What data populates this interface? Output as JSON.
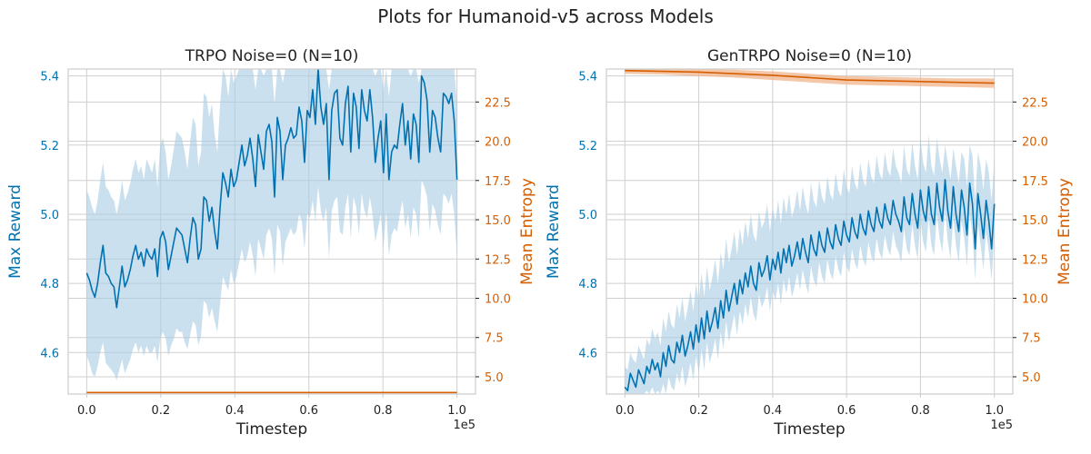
{
  "figure": {
    "title": "Plots for Humanoid-v5 across Models"
  },
  "colors": {
    "reward": "#0072b2",
    "reward_band": "#a9cce3",
    "entropy": "#d55e00",
    "entropy_band": "#f2b48c",
    "grid": "#cfcfcf",
    "text": "#222222"
  },
  "chart_data": [
    {
      "type": "line",
      "title": "TRPO Noise=0 (N=10)",
      "xlabel": "Timestep",
      "ylabel": "Max Reward",
      "y2label": "Mean Entropy",
      "x_scale_note": "1e5",
      "xlim": [
        -0.05,
        1.05
      ],
      "ylim": [
        4.48,
        5.42
      ],
      "y2lim": [
        3.9,
        24.6
      ],
      "xticks": [
        "0.0",
        "0.2",
        "0.4",
        "0.6",
        "0.8",
        "1.0"
      ],
      "yticks": [
        "4.6",
        "4.8",
        "5.0",
        "5.2",
        "5.4"
      ],
      "y2ticks": [
        "5.0",
        "7.5",
        "10.0",
        "12.5",
        "15.0",
        "17.5",
        "20.0",
        "22.5"
      ],
      "grid": true,
      "series": [
        {
          "axis": "left",
          "x_start": 0.0,
          "x_end": 1.0,
          "values": [
            4.83,
            4.81,
            4.78,
            4.76,
            4.8,
            4.86,
            4.91,
            4.83,
            4.82,
            4.8,
            4.79,
            4.73,
            4.79,
            4.85,
            4.79,
            4.81,
            4.84,
            4.88,
            4.91,
            4.87,
            4.89,
            4.85,
            4.9,
            4.88,
            4.87,
            4.9,
            4.82,
            4.93,
            4.95,
            4.92,
            4.84,
            4.88,
            4.92,
            4.96,
            4.95,
            4.94,
            4.9,
            4.86,
            4.93,
            4.99,
            4.97,
            4.87,
            4.9,
            5.05,
            5.04,
            4.98,
            5.02,
            4.95,
            4.9,
            5.02,
            5.12,
            5.09,
            5.05,
            5.13,
            5.08,
            5.1,
            5.15,
            5.2,
            5.14,
            5.17,
            5.22,
            5.16,
            5.08,
            5.23,
            5.18,
            5.13,
            5.24,
            5.26,
            5.21,
            5.05,
            5.28,
            5.24,
            5.1,
            5.2,
            5.22,
            5.25,
            5.22,
            5.23,
            5.31,
            5.27,
            5.15,
            5.3,
            5.28,
            5.36,
            5.26,
            5.42,
            5.31,
            5.26,
            5.32,
            5.1,
            5.3,
            5.35,
            5.36,
            5.22,
            5.2,
            5.32,
            5.37,
            5.18,
            5.35,
            5.31,
            5.19,
            5.36,
            5.3,
            5.27,
            5.36,
            5.28,
            5.15,
            5.22,
            5.27,
            5.12,
            5.29,
            5.1,
            5.18,
            5.2,
            5.19,
            5.26,
            5.32,
            5.2,
            5.27,
            5.16,
            5.29,
            5.26,
            5.15,
            5.4,
            5.38,
            5.33,
            5.18,
            5.3,
            5.28,
            5.22,
            5.18,
            5.35,
            5.34,
            5.32,
            5.35,
            5.27,
            5.1
          ]
        },
        {
          "axis": "left",
          "kind": "band",
          "x_start": 0.0,
          "x_end": 1.0,
          "lower": [
            4.59,
            4.57,
            4.54,
            4.53,
            4.56,
            4.6,
            4.63,
            4.57,
            4.56,
            4.55,
            4.54,
            4.52,
            4.55,
            4.58,
            4.54,
            4.56,
            4.58,
            4.61,
            4.63,
            4.6,
            4.62,
            4.59,
            4.62,
            4.6,
            4.6,
            4.62,
            4.57,
            4.64,
            4.66,
            4.64,
            4.59,
            4.62,
            4.64,
            4.67,
            4.66,
            4.66,
            4.63,
            4.61,
            4.65,
            4.69,
            4.68,
            4.62,
            4.65,
            4.75,
            4.74,
            4.7,
            4.73,
            4.69,
            4.66,
            4.74,
            4.82,
            4.8,
            4.78,
            4.84,
            4.8,
            4.82,
            4.86,
            4.9,
            4.86,
            4.88,
            4.92,
            4.88,
            4.82,
            4.93,
            4.9,
            4.87,
            4.94,
            4.96,
            4.93,
            4.82,
            4.97,
            4.95,
            4.85,
            4.92,
            4.94,
            4.96,
            4.94,
            4.95,
            5.0,
            4.98,
            4.9,
            5.0,
            4.99,
            5.04,
            4.98,
            5.08,
            5.01,
            4.98,
            5.02,
            4.87,
            5.01,
            5.04,
            5.05,
            4.95,
            4.94,
            5.02,
            5.06,
            4.93,
            5.05,
            5.02,
            4.94,
            5.06,
            5.01,
            4.99,
            5.05,
            5.0,
            4.92,
            4.96,
            5.0,
            4.9,
            5.01,
            4.88,
            4.94,
            4.96,
            4.95,
            5.0,
            5.04,
            4.96,
            5.0,
            4.93,
            5.02,
            5.0,
            4.93,
            5.1,
            5.08,
            5.05,
            4.95,
            5.03,
            5.01,
            4.97,
            4.94,
            5.06,
            5.05,
            5.03,
            5.06,
            5.0,
            4.88
          ],
          "upper": [
            5.07,
            5.05,
            5.02,
            5.0,
            5.04,
            5.1,
            5.15,
            5.08,
            5.07,
            5.05,
            5.04,
            5.0,
            5.04,
            5.1,
            5.04,
            5.06,
            5.09,
            5.13,
            5.16,
            5.12,
            5.14,
            5.1,
            5.16,
            5.14,
            5.12,
            5.16,
            5.08,
            5.2,
            5.22,
            5.18,
            5.1,
            5.14,
            5.19,
            5.24,
            5.23,
            5.22,
            5.18,
            5.13,
            5.21,
            5.28,
            5.26,
            5.14,
            5.18,
            5.35,
            5.34,
            5.28,
            5.32,
            5.23,
            5.18,
            5.32,
            5.42,
            5.4,
            5.34,
            5.42,
            5.38,
            5.4,
            5.42,
            5.42,
            5.42,
            5.42,
            5.42,
            5.42,
            5.36,
            5.42,
            5.42,
            5.4,
            5.42,
            5.42,
            5.42,
            5.32,
            5.42,
            5.42,
            5.38,
            5.42,
            5.42,
            5.42,
            5.42,
            5.42,
            5.42,
            5.42,
            5.42,
            5.42,
            5.42,
            5.42,
            5.42,
            5.42,
            5.42,
            5.42,
            5.42,
            5.36,
            5.42,
            5.42,
            5.42,
            5.42,
            5.42,
            5.42,
            5.42,
            5.42,
            5.42,
            5.42,
            5.42,
            5.42,
            5.42,
            5.42,
            5.42,
            5.42,
            5.4,
            5.42,
            5.42,
            5.36,
            5.42,
            5.34,
            5.42,
            5.42,
            5.42,
            5.42,
            5.42,
            5.42,
            5.42,
            5.4,
            5.42,
            5.42,
            5.38,
            5.42,
            5.42,
            5.42,
            5.42,
            5.42,
            5.42,
            5.42,
            5.42,
            5.42,
            5.42,
            5.42,
            5.42,
            5.42,
            5.32
          ]
        },
        {
          "axis": "right",
          "x": [
            0.0,
            1.0
          ],
          "values": [
            4.0,
            4.0
          ]
        }
      ]
    },
    {
      "type": "line",
      "title": "GenTRPO Noise=0 (N=10)",
      "xlabel": "Timestep",
      "ylabel": "Max Reward",
      "y2label": "Mean Entropy",
      "x_scale_note": "1e5",
      "xlim": [
        -0.05,
        1.05
      ],
      "ylim": [
        4.48,
        5.42
      ],
      "y2lim": [
        3.9,
        24.6
      ],
      "xticks": [
        "0.0",
        "0.2",
        "0.4",
        "0.6",
        "0.8",
        "1.0"
      ],
      "yticks": [
        "4.6",
        "4.8",
        "5.0",
        "5.2",
        "5.4"
      ],
      "y2ticks": [
        "5.0",
        "7.5",
        "10.0",
        "12.5",
        "15.0",
        "17.5",
        "20.0",
        "22.5"
      ],
      "grid": true,
      "series": [
        {
          "axis": "left",
          "x_start": 0.0,
          "x_end": 1.0,
          "values": [
            4.5,
            4.49,
            4.54,
            4.52,
            4.5,
            4.55,
            4.53,
            4.51,
            4.56,
            4.54,
            4.58,
            4.55,
            4.57,
            4.53,
            4.6,
            4.56,
            4.62,
            4.58,
            4.57,
            4.63,
            4.6,
            4.65,
            4.59,
            4.62,
            4.66,
            4.61,
            4.68,
            4.63,
            4.7,
            4.64,
            4.72,
            4.66,
            4.69,
            4.73,
            4.67,
            4.75,
            4.7,
            4.78,
            4.72,
            4.76,
            4.8,
            4.74,
            4.81,
            4.77,
            4.83,
            4.79,
            4.85,
            4.8,
            4.78,
            4.86,
            4.82,
            4.84,
            4.88,
            4.81,
            4.87,
            4.84,
            4.89,
            4.83,
            4.9,
            4.86,
            4.91,
            4.85,
            4.88,
            4.92,
            4.87,
            4.93,
            4.89,
            4.86,
            4.94,
            4.9,
            4.88,
            4.95,
            4.91,
            4.89,
            4.96,
            4.92,
            4.9,
            4.97,
            4.93,
            4.91,
            4.98,
            4.94,
            4.92,
            4.99,
            4.95,
            4.93,
            5.0,
            4.96,
            4.94,
            5.01,
            4.97,
            4.95,
            5.02,
            4.98,
            4.96,
            5.03,
            4.99,
            4.97,
            5.04,
            5.0,
            4.98,
            4.95,
            5.05,
            4.99,
            4.97,
            5.06,
            5.0,
            4.96,
            5.07,
            5.01,
            4.98,
            5.08,
            5.0,
            4.97,
            5.09,
            5.02,
            4.98,
            5.1,
            5.01,
            4.96,
            5.08,
            5.0,
            4.95,
            5.07,
            5.02,
            4.94,
            5.09,
            5.03,
            4.9,
            5.06,
            5.0,
            4.93,
            5.04,
            4.98,
            4.9,
            5.03
          ]
        },
        {
          "axis": "left",
          "kind": "band",
          "x_start": 0.0,
          "x_end": 1.0,
          "lower": [
            4.48,
            4.48,
            4.48,
            4.48,
            4.48,
            4.48,
            4.48,
            4.48,
            4.49,
            4.48,
            4.5,
            4.48,
            4.49,
            4.48,
            4.51,
            4.48,
            4.53,
            4.5,
            4.49,
            4.54,
            4.51,
            4.56,
            4.5,
            4.53,
            4.57,
            4.52,
            4.59,
            4.54,
            4.61,
            4.55,
            4.63,
            4.57,
            4.6,
            4.64,
            4.58,
            4.66,
            4.61,
            4.69,
            4.63,
            4.67,
            4.71,
            4.65,
            4.72,
            4.68,
            4.74,
            4.7,
            4.76,
            4.71,
            4.69,
            4.77,
            4.73,
            4.75,
            4.79,
            4.72,
            4.78,
            4.75,
            4.8,
            4.74,
            4.81,
            4.77,
            4.82,
            4.76,
            4.79,
            4.83,
            4.78,
            4.84,
            4.8,
            4.77,
            4.85,
            4.81,
            4.79,
            4.86,
            4.82,
            4.8,
            4.87,
            4.83,
            4.81,
            4.88,
            4.84,
            4.82,
            4.89,
            4.85,
            4.83,
            4.9,
            4.86,
            4.84,
            4.91,
            4.87,
            4.85,
            4.92,
            4.88,
            4.86,
            4.93,
            4.89,
            4.87,
            4.94,
            4.9,
            4.88,
            4.95,
            4.91,
            4.89,
            4.86,
            4.96,
            4.9,
            4.88,
            4.97,
            4.91,
            4.87,
            4.98,
            4.92,
            4.89,
            4.99,
            4.91,
            4.88,
            5.0,
            4.93,
            4.89,
            5.01,
            4.92,
            4.87,
            4.99,
            4.91,
            4.86,
            4.98,
            4.93,
            4.85,
            5.0,
            4.94,
            4.81,
            4.97,
            4.91,
            4.84,
            4.95,
            4.89,
            4.81,
            4.94
          ],
          "upper": [
            4.56,
            4.55,
            4.6,
            4.58,
            4.57,
            4.62,
            4.6,
            4.58,
            4.64,
            4.62,
            4.67,
            4.64,
            4.66,
            4.62,
            4.7,
            4.66,
            4.72,
            4.68,
            4.67,
            4.74,
            4.7,
            4.76,
            4.69,
            4.73,
            4.78,
            4.72,
            4.8,
            4.75,
            4.83,
            4.76,
            4.85,
            4.78,
            4.82,
            4.87,
            4.8,
            4.89,
            4.84,
            4.93,
            4.86,
            4.9,
            4.95,
            4.88,
            4.96,
            4.91,
            4.98,
            4.93,
            5.0,
            4.94,
            4.92,
            5.01,
            4.96,
            4.98,
            5.03,
            4.95,
            5.02,
            4.98,
            5.04,
            4.97,
            5.05,
            5.0,
            5.06,
            4.99,
            5.02,
            5.07,
            5.01,
            5.08,
            5.03,
            5.0,
            5.09,
            5.04,
            5.02,
            5.1,
            5.05,
            5.03,
            5.11,
            5.06,
            5.04,
            5.12,
            5.07,
            5.05,
            5.13,
            5.08,
            5.06,
            5.14,
            5.09,
            5.07,
            5.15,
            5.1,
            5.08,
            5.16,
            5.11,
            5.09,
            5.17,
            5.12,
            5.1,
            5.18,
            5.13,
            5.11,
            5.19,
            5.14,
            5.12,
            5.09,
            5.2,
            5.13,
            5.11,
            5.21,
            5.14,
            5.1,
            5.22,
            5.15,
            5.12,
            5.23,
            5.14,
            5.11,
            5.22,
            5.16,
            5.12,
            5.2,
            5.15,
            5.1,
            5.19,
            5.14,
            5.09,
            5.18,
            5.16,
            5.08,
            5.2,
            5.17,
            5.04,
            5.18,
            5.14,
            5.07,
            5.16,
            5.12,
            5.04,
            5.16
          ]
        },
        {
          "axis": "right",
          "x": [
            0.0,
            0.1,
            0.2,
            0.3,
            0.4,
            0.5,
            0.6,
            0.7,
            0.8,
            0.9,
            1.0
          ],
          "values": [
            24.5,
            24.45,
            24.4,
            24.3,
            24.2,
            24.05,
            23.9,
            23.85,
            23.8,
            23.75,
            23.7
          ]
        },
        {
          "axis": "right",
          "kind": "band",
          "x": [
            0.0,
            0.1,
            0.2,
            0.3,
            0.4,
            0.5,
            0.6,
            0.7,
            0.8,
            0.9,
            1.0
          ],
          "lower": [
            24.3,
            24.25,
            24.15,
            24.05,
            23.9,
            23.75,
            23.6,
            23.55,
            23.5,
            23.45,
            23.4
          ],
          "upper": [
            24.6,
            24.6,
            24.6,
            24.55,
            24.45,
            24.3,
            24.15,
            24.1,
            24.05,
            24.0,
            24.0
          ]
        }
      ]
    }
  ]
}
